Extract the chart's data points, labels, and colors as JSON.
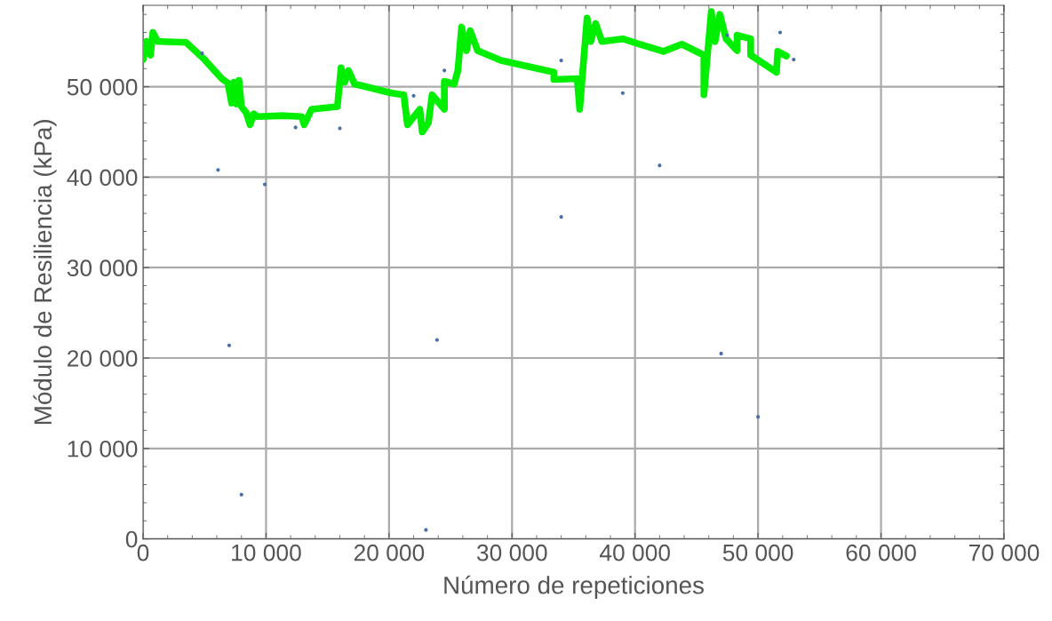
{
  "chart_data": {
    "type": "line",
    "xlabel": "Número de repeticiones",
    "ylabel": "Módulo de Resiliencia (kPa)",
    "xlim": [
      0,
      70000
    ],
    "ylim": [
      0,
      59000
    ],
    "xticks": [
      0,
      {
        "value": 10000,
        "label": "10 000"
      },
      {
        "value": 20000,
        "label": "20 000"
      },
      {
        "value": 30000,
        "label": "30 000"
      },
      {
        "value": 40000,
        "label": "40 000"
      },
      {
        "value": 50000,
        "label": "50 000"
      },
      {
        "value": 60000,
        "label": "60 000"
      },
      {
        "value": 70000,
        "label": "70 000"
      }
    ],
    "yticks": [
      0,
      {
        "value": 10000,
        "label": "10 000"
      },
      {
        "value": 20000,
        "label": "20 000"
      },
      {
        "value": 30000,
        "label": "30 000"
      },
      {
        "value": 40000,
        "label": "40 000"
      },
      {
        "value": 50000,
        "label": "50 000"
      }
    ],
    "grid": true,
    "legend": false,
    "series": [
      {
        "type": "scatter",
        "color": "#4a6fa5",
        "x": [
          6100,
          9900,
          7000,
          8000,
          23000,
          23900,
          34000,
          42000,
          47000,
          50000,
          4800,
          12400,
          16000,
          22000,
          24500,
          34000,
          39000,
          47500,
          51800,
          52900
        ],
        "values": [
          40800,
          39200,
          21400,
          4900,
          1000,
          22000,
          35600,
          41300,
          20500,
          13500,
          53700,
          45500,
          45400,
          49000,
          51800,
          52900,
          49300,
          55700,
          56000,
          53000
        ]
      },
      {
        "color": "#00ee00",
        "x": [
          0,
          300,
          600,
          800,
          1200,
          1400,
          3500,
          5000,
          6400,
          6900,
          7200,
          7400,
          7600,
          7800,
          8000,
          8400,
          8700,
          9000,
          9300,
          11500,
          12900,
          13100,
          13700,
          15800,
          16100,
          16400,
          16700,
          17200,
          20200,
          21200,
          21500,
          22500,
          22700,
          23200,
          23500,
          24500,
          24500,
          25300,
          25600,
          25900,
          26300,
          26600,
          27200,
          29100,
          33400,
          33400,
          35300,
          35500,
          36100,
          36400,
          36800,
          37300,
          39000,
          40400,
          41600,
          42300,
          43800,
          45600,
          45600,
          46200,
          46500,
          46900,
          47400,
          48300,
          48300,
          49400,
          49400,
          51500,
          51600,
          52300
        ],
        "values": [
          53000,
          55000,
          53500,
          56000,
          55000,
          55000,
          54900,
          53000,
          50900,
          50400,
          48200,
          50500,
          48100,
          50700,
          47800,
          47100,
          45800,
          47000,
          46700,
          46800,
          46700,
          45800,
          47500,
          47800,
          52100,
          50500,
          51800,
          50300,
          49300,
          49100,
          45800,
          47500,
          45000,
          46000,
          49100,
          47500,
          50600,
          50300,
          51800,
          56600,
          54000,
          56200,
          54000,
          52900,
          51600,
          50800,
          50900,
          47500,
          57600,
          55000,
          57000,
          55000,
          55300,
          54700,
          54200,
          53900,
          54700,
          53500,
          49100,
          58300,
          55000,
          58000,
          55300,
          54000,
          55700,
          55300,
          53500,
          51600,
          53900,
          53400
        ]
      }
    ]
  }
}
